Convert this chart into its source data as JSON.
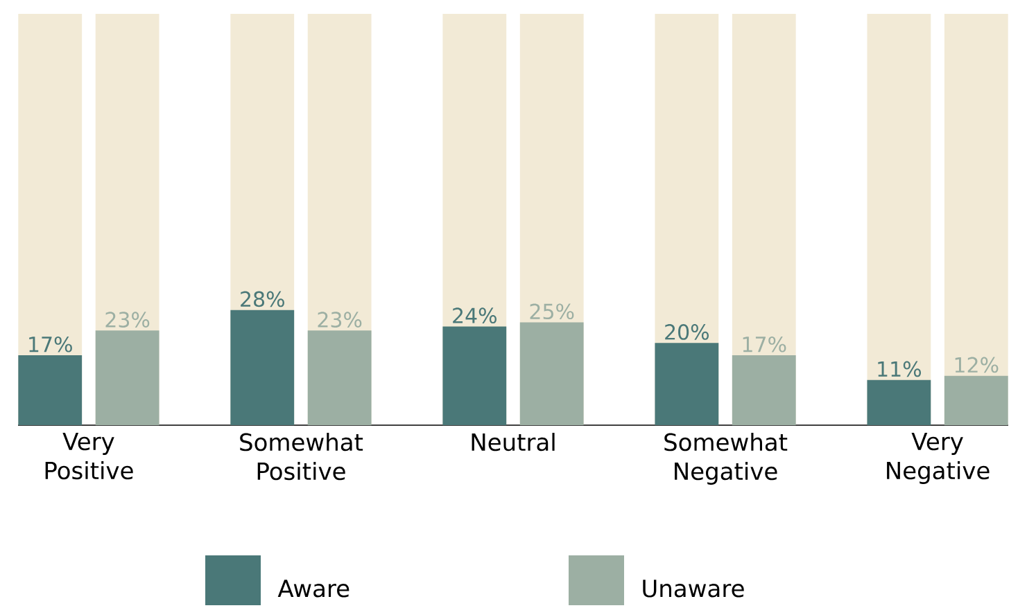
{
  "chart_data": {
    "type": "bar",
    "categories": [
      "Very Positive",
      "Somewhat Positive",
      "Neutral",
      "Somewhat Negative",
      "Very Negative"
    ],
    "series": [
      {
        "name": "Aware",
        "color": "#4a7878",
        "values": [
          17,
          28,
          24,
          20,
          11
        ],
        "value_labels": [
          "17%",
          "28%",
          "24%",
          "20%",
          "11%"
        ]
      },
      {
        "name": "Unaware",
        "color": "#9cafa3",
        "values": [
          23,
          23,
          25,
          17,
          12
        ],
        "value_labels": [
          "23%",
          "23%",
          "25%",
          "17%",
          "12%"
        ]
      }
    ],
    "ylim": [
      0,
      100
    ],
    "tick_labels": "x",
    "grid": false,
    "legend": "bottom"
  }
}
